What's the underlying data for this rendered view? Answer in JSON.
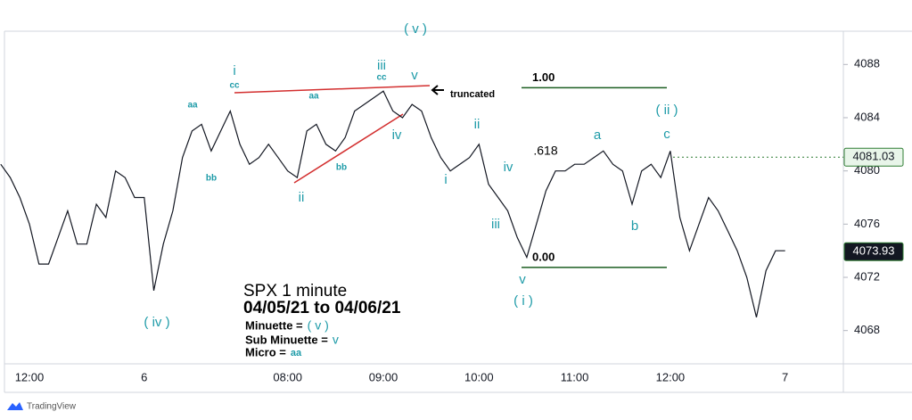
{
  "chart_data": {
    "type": "line",
    "title": "SPX 1 minute",
    "subtitle": "04/05/21 to 04/06/21",
    "categories": [
      null,
      null,
      null,
      "12:00",
      null,
      null,
      null,
      null,
      null,
      null,
      null,
      null,
      null,
      null,
      null,
      "6",
      null,
      null,
      null,
      null,
      null,
      null,
      null,
      null,
      null,
      null,
      null,
      null,
      null,
      null,
      "08:00",
      null,
      null,
      null,
      null,
      null,
      null,
      null,
      null,
      null,
      "09:00",
      null,
      null,
      null,
      null,
      null,
      null,
      null,
      null,
      null,
      "10:00",
      null,
      null,
      null,
      null,
      null,
      null,
      null,
      null,
      null,
      "11:00",
      null,
      null,
      null,
      null,
      null,
      null,
      null,
      null,
      null,
      "12:00",
      null,
      null,
      null,
      null,
      null,
      null,
      null,
      null,
      null,
      null,
      null,
      "7"
    ],
    "series": [
      {
        "name": "SPX",
        "color": "#131722",
        "values": [
          4080.5,
          4079.5,
          4078,
          4076,
          4073,
          4073,
          4075,
          4077,
          4074.5,
          4074.5,
          4077.5,
          4076.5,
          4080,
          4079.5,
          4078,
          4078,
          4071,
          4074.5,
          4077,
          4081,
          4083,
          4083.5,
          4081.5,
          4083,
          4084.5,
          4082,
          4080.5,
          4081,
          4082,
          4081,
          4080,
          4079.5,
          4083,
          4083.5,
          4082,
          4081.5,
          4082.5,
          4084.5,
          4085,
          4085.5,
          4086,
          4084.5,
          4084,
          4085,
          4084.5,
          4082.5,
          4081,
          4080,
          4080.5,
          4081,
          4082,
          4079,
          4078,
          4077,
          4075,
          4073.5,
          4076,
          4078.5,
          4080,
          4080,
          4080.5,
          4080.5,
          4081,
          4081.5,
          4080.5,
          4080,
          4077.5,
          4080,
          4080.5,
          4079.5,
          4081.5,
          4076.5,
          4074,
          4076,
          4078,
          4077,
          4075.5,
          4074,
          4072,
          4069,
          4072.5,
          4074,
          4074
        ]
      }
    ],
    "ylim": [
      4065.5,
      4090.5
    ],
    "yticks": [
      4068,
      4072,
      4076,
      4080,
      4084,
      4088
    ],
    "grid": false,
    "price_tags": [
      {
        "value": 4081.03,
        "color": "#e8f5e9",
        "text_color": "#131722"
      },
      {
        "value": 4073.93,
        "color": "#131722",
        "text_color": "#ffffff"
      }
    ],
    "fib_levels": [
      {
        "value": 4086.25,
        "label": "1.00"
      },
      {
        "value": 4072.75,
        "label": "0.00"
      }
    ],
    "fib_color": "#1b5e20",
    "annotations": [
      "( iv )",
      "i",
      "cc",
      "aa",
      "bb",
      "ii",
      "aa",
      "bb",
      "iii",
      "cc",
      "( v )",
      "v",
      "iv",
      "ii",
      "i",
      "iv",
      "iii",
      "v",
      "( i )",
      "a",
      "b",
      "c",
      "( ii )",
      ".618",
      "truncated"
    ],
    "notes": [
      {
        "text": "Minuette =",
        "mark": "( v )"
      },
      {
        "text": "Sub Minuette =",
        "mark": "v"
      },
      {
        "text": "Micro =",
        "mark": "aa"
      }
    ],
    "brand": "TradingView"
  }
}
